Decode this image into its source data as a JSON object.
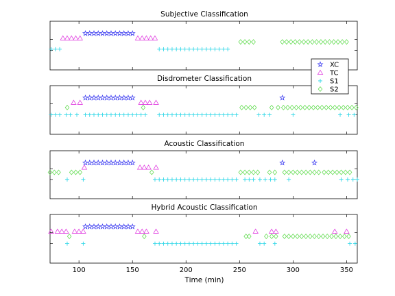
{
  "chart_data": [
    {
      "type": "scatter",
      "title": "Subjective Classification",
      "xlim": [
        73,
        360
      ],
      "ylim": [
        0,
        4
      ],
      "xticks": [],
      "series": [
        {
          "name": "XC",
          "level": 3,
          "points": [
            [
              106,
              110,
              114,
              118,
              122,
              126,
              130,
              134,
              138,
              142,
              146,
              150
            ]
          ]
        },
        {
          "name": "TC",
          "level": 2.6,
          "points": [
            [
              85,
              89,
              93,
              97,
              101,
              155,
              159,
              163,
              167,
              171
            ]
          ]
        },
        {
          "name": "S1",
          "level": 1.7,
          "points": [
            [
              74,
              78,
              82,
              175,
              179,
              183,
              187,
              191,
              195,
              199,
              203,
              207,
              211,
              215,
              219,
              223,
              227,
              231,
              235,
              239
            ]
          ]
        },
        {
          "name": "S2",
          "level": 2.3,
          "points": [
            [
              251,
              255,
              259,
              263,
              290,
              294,
              298,
              302,
              306,
              310,
              314,
              318,
              322,
              326,
              330,
              334,
              338,
              342,
              346,
              350
            ]
          ]
        }
      ]
    },
    {
      "type": "scatter",
      "title": "Disdrometer Classification",
      "xlim": [
        73,
        360
      ],
      "ylim": [
        0,
        4
      ],
      "xticks": [],
      "series": [
        {
          "name": "XC",
          "level": 3,
          "points": [
            [
              106,
              110,
              114,
              118,
              122,
              126,
              130,
              134,
              138,
              142,
              146,
              150,
              290
            ]
          ]
        },
        {
          "name": "TC",
          "level": 2.6,
          "points": [
            [
              95,
              101,
              158,
              162,
              166,
              172
            ]
          ]
        },
        {
          "name": "S1",
          "level": 1.6,
          "points": [
            [
              74,
              78,
              82,
              88,
              92,
              98,
              106,
              110,
              114,
              118,
              122,
              126,
              130,
              134,
              138,
              142,
              146,
              150,
              154,
              158,
              162,
              175,
              179,
              183,
              187,
              191,
              195,
              199,
              203,
              207,
              211,
              215,
              219,
              223,
              227,
              231,
              235,
              239,
              243,
              247,
              268,
              273,
              278,
              300,
              344,
              352,
              357
            ]
          ]
        },
        {
          "name": "S2",
          "level": 2.2,
          "points": [
            [
              89,
              160,
              252,
              256,
              260,
              264,
              280,
              286,
              291,
              295,
              299,
              303,
              307,
              311,
              315,
              319,
              323,
              327,
              331,
              335,
              339,
              343,
              347,
              351,
              355,
              359
            ]
          ]
        }
      ]
    },
    {
      "type": "scatter",
      "title": "Acoustic Classification",
      "xlim": [
        73,
        360
      ],
      "ylim": [
        0,
        4
      ],
      "xticks": [],
      "series": [
        {
          "name": "XC",
          "level": 3,
          "points": [
            [
              106,
              110,
              114,
              118,
              122,
              126,
              130,
              134,
              138,
              142,
              146,
              150,
              290,
              320
            ]
          ]
        },
        {
          "name": "TC",
          "level": 2.6,
          "points": [
            [
              105,
              157,
              161,
              165,
              172
            ]
          ]
        },
        {
          "name": "S1",
          "level": 1.6,
          "points": [
            [
              89,
              104,
              171,
              175,
              179,
              183,
              187,
              191,
              195,
              199,
              203,
              207,
              211,
              215,
              219,
              223,
              227,
              231,
              235,
              239,
              243,
              247,
              255,
              259,
              263,
              269,
              274,
              279,
              283,
              296,
              345,
              351,
              356,
              360
            ]
          ]
        },
        {
          "name": "S2",
          "level": 2.2,
          "points": [
            [
              73,
              77,
              81,
              93,
              97,
              101,
              168,
              251,
              255,
              259,
              263,
              267,
              278,
              283,
              292,
              296,
              300,
              304,
              308,
              312,
              316,
              320,
              324,
              329,
              333,
              337,
              341,
              345,
              349,
              353
            ]
          ]
        }
      ]
    },
    {
      "type": "scatter",
      "title": "Hybrid Acoustic Classification",
      "xlabel": "Time (min)",
      "xlim": [
        73,
        360
      ],
      "ylim": [
        0,
        4
      ],
      "xticks": [
        100,
        150,
        200,
        250,
        300,
        350
      ],
      "series": [
        {
          "name": "XC",
          "level": 3,
          "points": [
            [
              106,
              110,
              114,
              118,
              122,
              126,
              130,
              134,
              138,
              142,
              146,
              150
            ]
          ]
        },
        {
          "name": "TC",
          "level": 2.6,
          "points": [
            [
              74,
              80,
              84,
              88,
              96,
              100,
              104,
              155,
              159,
              163,
              172,
              265,
              280,
              284,
              339,
              350
            ]
          ]
        },
        {
          "name": "S1",
          "level": 1.6,
          "points": [
            [
              89,
              104,
              171,
              175,
              179,
              183,
              187,
              191,
              195,
              199,
              203,
              207,
              211,
              215,
              219,
              223,
              227,
              231,
              235,
              239,
              243,
              247,
              269,
              273,
              283,
              353,
              358
            ]
          ]
        },
        {
          "name": "S2",
          "level": 2.2,
          "points": [
            [
              91,
              161,
              256,
              259,
              275,
              280,
              284,
              292,
              296,
              300,
              304,
              308,
              312,
              316,
              320,
              324,
              328,
              332,
              336,
              340,
              344,
              348,
              352
            ]
          ]
        }
      ]
    }
  ],
  "legend": {
    "placement": "right",
    "entries": [
      {
        "label": "XC",
        "marker": "star",
        "color": "#3a3af0"
      },
      {
        "label": "TC",
        "marker": "triangle",
        "color": "#e040e0"
      },
      {
        "label": "S1",
        "marker": "plus",
        "color": "#33d8e8"
      },
      {
        "label": "S2",
        "marker": "diamond",
        "color": "#66dd55"
      }
    ]
  }
}
